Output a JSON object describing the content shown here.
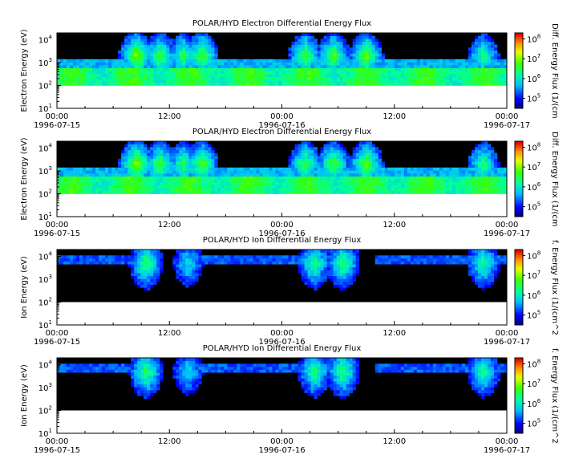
{
  "time_axis": {
    "ticks": [
      {
        "time": "00:00",
        "date": "1996-07-15"
      },
      {
        "time": "12:00",
        "date": ""
      },
      {
        "time": "00:00",
        "date": "1996-07-16"
      },
      {
        "time": "12:00",
        "date": ""
      },
      {
        "time": "00:00",
        "date": "1996-07-17"
      }
    ]
  },
  "energy_ticks": [
    {
      "base": "10",
      "exp": "1"
    },
    {
      "base": "10",
      "exp": "2"
    },
    {
      "base": "10",
      "exp": "3"
    },
    {
      "base": "10",
      "exp": "4"
    }
  ],
  "panels": [
    {
      "title": "POLAR/HYD  Electron Differential Energy Flux",
      "ylabel": "Electron Energy (eV)",
      "cbar_label": "Diff. Energy Flux (1/(cm",
      "species": "electron"
    },
    {
      "title": "POLAR/HYD  Electron Differential Energy Flux",
      "ylabel": "Electron Energy (eV)",
      "cbar_label": "Diff. Energy Flux (1/(cm",
      "species": "electron"
    },
    {
      "title": "POLAR/HYD  Ion Differential Energy Flux",
      "ylabel": "Ion Energy (eV)",
      "cbar_label": "f. Energy Flux (1/(cm^2",
      "species": "ion"
    },
    {
      "title": "POLAR/HYD  Ion Differential Energy Flux",
      "ylabel": "Ion Energy (eV)",
      "cbar_label": "f. Energy Flux (1/(cm^2",
      "species": "ion"
    }
  ],
  "colorbar_ticks": [
    {
      "base": "10",
      "exp": "5"
    },
    {
      "base": "10",
      "exp": "6"
    },
    {
      "base": "10",
      "exp": "7"
    },
    {
      "base": "10",
      "exp": "8"
    }
  ],
  "chart_data": {
    "type": "heatmap",
    "x_range": [
      "1996-07-15 00:00",
      "1996-07-17 00:00"
    ],
    "y_scale": "log",
    "ylim_eV": [
      10,
      20000
    ],
    "data_floor_eV": 100,
    "colorscale": "rainbow (blue-cyan-green-yellow-red), log flux 10^4.5 to 10^8.3",
    "colors": {
      "background": "#000000",
      "no_data": "#ffffff"
    },
    "electron_plasma_sheet": {
      "description": "continuous green band ~100-800 eV",
      "bursts_hours_flux_log": [
        [
          8.5,
          7.2
        ],
        [
          11.0,
          6.8
        ],
        [
          13.5,
          6.6
        ],
        [
          15.5,
          6.9
        ],
        [
          26.5,
          6.8
        ],
        [
          29.5,
          6.9
        ],
        [
          33.0,
          7.0
        ],
        [
          45.5,
          6.5
        ]
      ]
    },
    "ion_plasma_sheet": {
      "description": "green/blue patches 300 eV - 20 keV",
      "bursts_hours_flux_log": [
        [
          9.5,
          6.6
        ],
        [
          14.0,
          6.0
        ],
        [
          27.5,
          6.5
        ],
        [
          30.5,
          6.6
        ],
        [
          45.5,
          6.4
        ]
      ]
    }
  }
}
